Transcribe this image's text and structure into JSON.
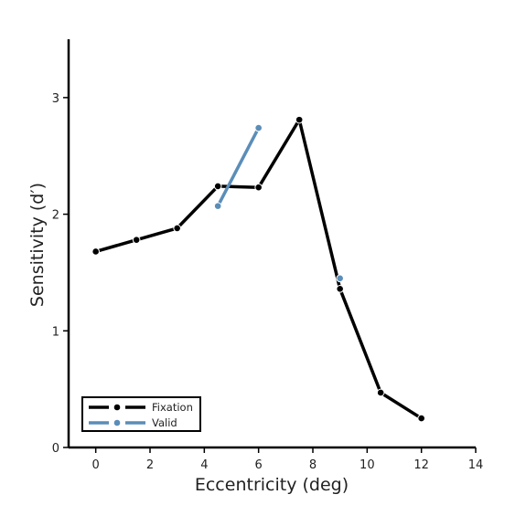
{
  "chart_data": {
    "type": "line",
    "title": "",
    "xlabel": "Eccentricity (deg)",
    "ylabel": "Sensitivity (d′)",
    "xlim": [
      -1,
      14
    ],
    "ylim": [
      0,
      3.5
    ],
    "xticks": [
      0,
      2,
      4,
      6,
      8,
      10,
      12,
      14
    ],
    "yticks": [
      0,
      1,
      2,
      3
    ],
    "grid": false,
    "legend_position": "lower-left",
    "series": [
      {
        "name": "Fixation",
        "color": "#000000",
        "x": [
          0,
          1.5,
          3,
          4.5,
          6,
          7.5,
          9,
          10.5,
          12
        ],
        "y": [
          1.68,
          1.78,
          1.88,
          2.24,
          2.23,
          2.81,
          1.36,
          0.47,
          0.25
        ]
      },
      {
        "name": "Valid",
        "color": "#5b8db8",
        "x": [
          4.5,
          6,
          9
        ],
        "y": [
          2.07,
          2.74,
          1.45
        ],
        "segments": [
          [
            0,
            1
          ],
          [
            2,
            2
          ]
        ]
      }
    ]
  }
}
